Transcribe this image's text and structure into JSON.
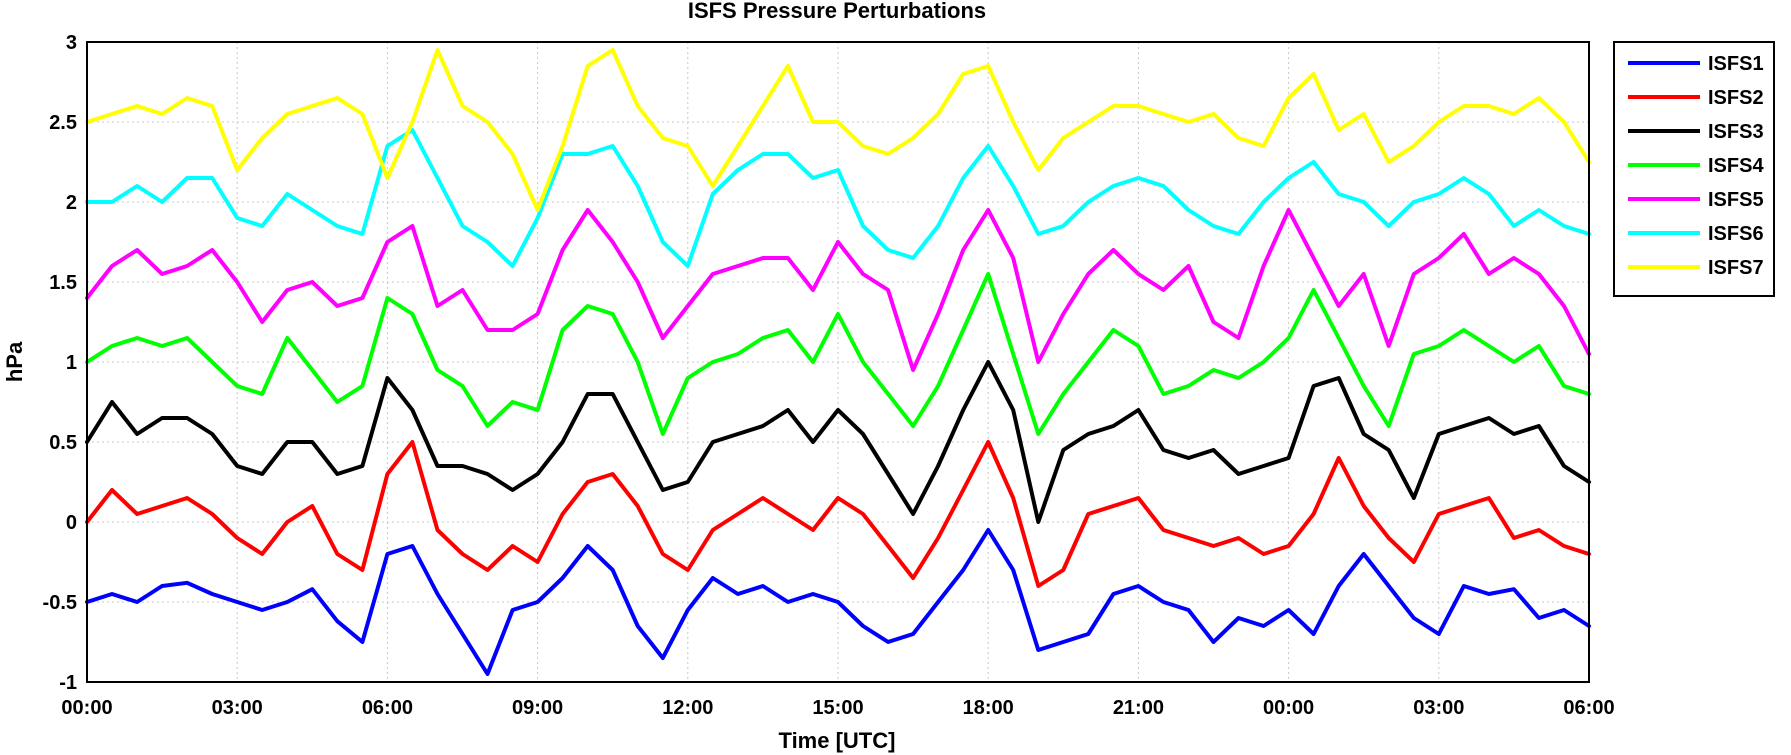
{
  "chart_data": {
    "type": "line",
    "title": "ISFS Pressure Perturbations",
    "xlabel": "Time [UTC]",
    "ylabel": "hPa",
    "ylim": [
      -1,
      3
    ],
    "xlim": [
      0,
      30
    ],
    "grid": true,
    "legend_position": "outside-right",
    "yticks": [
      "-1",
      "-0.5",
      "0",
      "0.5",
      "1",
      "1.5",
      "2",
      "2.5",
      "3"
    ],
    "xticks": [
      "00:00",
      "03:00",
      "06:00",
      "09:00",
      "12:00",
      "15:00",
      "18:00",
      "21:00",
      "00:00",
      "03:00",
      "06:00"
    ],
    "x_hours": [
      0,
      0.5,
      1,
      1.5,
      2,
      2.5,
      3,
      3.5,
      4,
      4.5,
      5,
      5.5,
      6,
      6.5,
      7,
      7.5,
      8,
      8.5,
      9,
      9.5,
      10,
      10.5,
      11,
      11.5,
      12,
      12.5,
      13,
      13.5,
      14,
      14.5,
      15,
      15.5,
      16,
      16.5,
      17,
      17.5,
      18,
      18.5,
      19,
      19.5,
      20,
      20.5,
      21,
      21.5,
      22,
      22.5,
      23,
      23.5,
      24,
      24.5,
      25,
      25.5,
      26,
      26.5,
      27,
      27.5,
      28,
      28.5,
      29,
      29.5,
      30
    ],
    "series": [
      {
        "name": "ISFS1",
        "color": "#0000ff",
        "values": [
          -0.5,
          -0.45,
          -0.5,
          -0.4,
          -0.38,
          -0.45,
          -0.5,
          -0.55,
          -0.5,
          -0.42,
          -0.62,
          -0.75,
          -0.2,
          -0.15,
          -0.45,
          -0.7,
          -0.95,
          -0.55,
          -0.5,
          -0.35,
          -0.15,
          -0.3,
          -0.65,
          -0.85,
          -0.55,
          -0.35,
          -0.45,
          -0.4,
          -0.5,
          -0.45,
          -0.5,
          -0.65,
          -0.75,
          -0.7,
          -0.5,
          -0.3,
          -0.05,
          -0.3,
          -0.8,
          -0.75,
          -0.7,
          -0.45,
          -0.4,
          -0.5,
          -0.55,
          -0.75,
          -0.6,
          -0.65,
          -0.55,
          -0.7,
          -0.4,
          -0.2,
          -0.4,
          -0.6,
          -0.7,
          -0.4,
          -0.45,
          -0.42,
          -0.6,
          -0.55,
          -0.65
        ]
      },
      {
        "name": "ISFS2",
        "color": "#ff0000",
        "values": [
          0,
          0.2,
          0.05,
          0.1,
          0.15,
          0.05,
          -0.1,
          -0.2,
          0,
          0.1,
          -0.2,
          -0.3,
          0.3,
          0.5,
          -0.05,
          -0.2,
          -0.3,
          -0.15,
          -0.25,
          0.05,
          0.25,
          0.3,
          0.1,
          -0.2,
          -0.3,
          -0.05,
          0.05,
          0.15,
          0.05,
          -0.05,
          0.15,
          0.05,
          -0.15,
          -0.35,
          -0.1,
          0.2,
          0.5,
          0.15,
          -0.4,
          -0.3,
          0.05,
          0.1,
          0.15,
          -0.05,
          -0.1,
          -0.15,
          -0.1,
          -0.2,
          -0.15,
          0.05,
          0.4,
          0.1,
          -0.1,
          -0.25,
          0.05,
          0.1,
          0.15,
          -0.1,
          -0.05,
          -0.15,
          -0.2
        ]
      },
      {
        "name": "ISFS3",
        "color": "#000000",
        "values": [
          0.5,
          0.75,
          0.55,
          0.65,
          0.65,
          0.55,
          0.35,
          0.3,
          0.5,
          0.5,
          0.3,
          0.35,
          0.9,
          0.7,
          0.35,
          0.35,
          0.3,
          0.2,
          0.3,
          0.5,
          0.8,
          0.8,
          0.5,
          0.2,
          0.25,
          0.5,
          0.55,
          0.6,
          0.7,
          0.5,
          0.7,
          0.55,
          0.3,
          0.05,
          0.35,
          0.7,
          1.0,
          0.7,
          0.0,
          0.45,
          0.55,
          0.6,
          0.7,
          0.45,
          0.4,
          0.45,
          0.3,
          0.35,
          0.4,
          0.85,
          0.9,
          0.55,
          0.45,
          0.15,
          0.55,
          0.6,
          0.65,
          0.55,
          0.6,
          0.35,
          0.25
        ]
      },
      {
        "name": "ISFS4",
        "color": "#00ff00",
        "values": [
          1.0,
          1.1,
          1.15,
          1.1,
          1.15,
          1.0,
          0.85,
          0.8,
          1.15,
          0.95,
          0.75,
          0.85,
          1.4,
          1.3,
          0.95,
          0.85,
          0.6,
          0.75,
          0.7,
          1.2,
          1.35,
          1.3,
          1.0,
          0.55,
          0.9,
          1.0,
          1.05,
          1.15,
          1.2,
          1.0,
          1.3,
          1.0,
          0.8,
          0.6,
          0.85,
          1.2,
          1.55,
          1.05,
          0.55,
          0.8,
          1.0,
          1.2,
          1.1,
          0.8,
          0.85,
          0.95,
          0.9,
          1.0,
          1.15,
          1.45,
          1.15,
          0.85,
          0.6,
          1.05,
          1.1,
          1.2,
          1.1,
          1.0,
          1.1,
          0.85,
          0.8
        ]
      },
      {
        "name": "ISFS5",
        "color": "#ff00ff",
        "values": [
          1.4,
          1.6,
          1.7,
          1.55,
          1.6,
          1.7,
          1.5,
          1.25,
          1.45,
          1.5,
          1.35,
          1.4,
          1.75,
          1.85,
          1.35,
          1.45,
          1.2,
          1.2,
          1.3,
          1.7,
          1.95,
          1.75,
          1.5,
          1.15,
          1.35,
          1.55,
          1.6,
          1.65,
          1.65,
          1.45,
          1.75,
          1.55,
          1.45,
          0.95,
          1.3,
          1.7,
          1.95,
          1.65,
          1.0,
          1.3,
          1.55,
          1.7,
          1.55,
          1.45,
          1.6,
          1.25,
          1.15,
          1.6,
          1.95,
          1.65,
          1.35,
          1.55,
          1.1,
          1.55,
          1.65,
          1.8,
          1.55,
          1.65,
          1.55,
          1.35,
          1.05
        ]
      },
      {
        "name": "ISFS6",
        "color": "#00ffff",
        "values": [
          2.0,
          2.0,
          2.1,
          2.0,
          2.15,
          2.15,
          1.9,
          1.85,
          2.05,
          1.95,
          1.85,
          1.8,
          2.35,
          2.45,
          2.15,
          1.85,
          1.75,
          1.6,
          1.9,
          2.3,
          2.3,
          2.35,
          2.1,
          1.75,
          1.6,
          2.05,
          2.2,
          2.3,
          2.3,
          2.15,
          2.2,
          1.85,
          1.7,
          1.65,
          1.85,
          2.15,
          2.35,
          2.1,
          1.8,
          1.85,
          2.0,
          2.1,
          2.15,
          2.1,
          1.95,
          1.85,
          1.8,
          2.0,
          2.15,
          2.25,
          2.05,
          2.0,
          1.85,
          2.0,
          2.05,
          2.15,
          2.05,
          1.85,
          1.95,
          1.85,
          1.8
        ]
      },
      {
        "name": "ISFS7",
        "color": "#ffff00",
        "values": [
          2.5,
          2.55,
          2.6,
          2.55,
          2.65,
          2.6,
          2.2,
          2.4,
          2.55,
          2.6,
          2.65,
          2.55,
          2.15,
          2.5,
          2.95,
          2.6,
          2.5,
          2.3,
          1.95,
          2.35,
          2.85,
          2.95,
          2.6,
          2.4,
          2.35,
          2.1,
          2.35,
          2.6,
          2.85,
          2.5,
          2.5,
          2.35,
          2.3,
          2.4,
          2.55,
          2.8,
          2.85,
          2.5,
          2.2,
          2.4,
          2.5,
          2.6,
          2.6,
          2.55,
          2.5,
          2.55,
          2.4,
          2.35,
          2.65,
          2.8,
          2.45,
          2.55,
          2.25,
          2.35,
          2.5,
          2.6,
          2.6,
          2.55,
          2.65,
          2.5,
          2.25
        ]
      }
    ]
  }
}
